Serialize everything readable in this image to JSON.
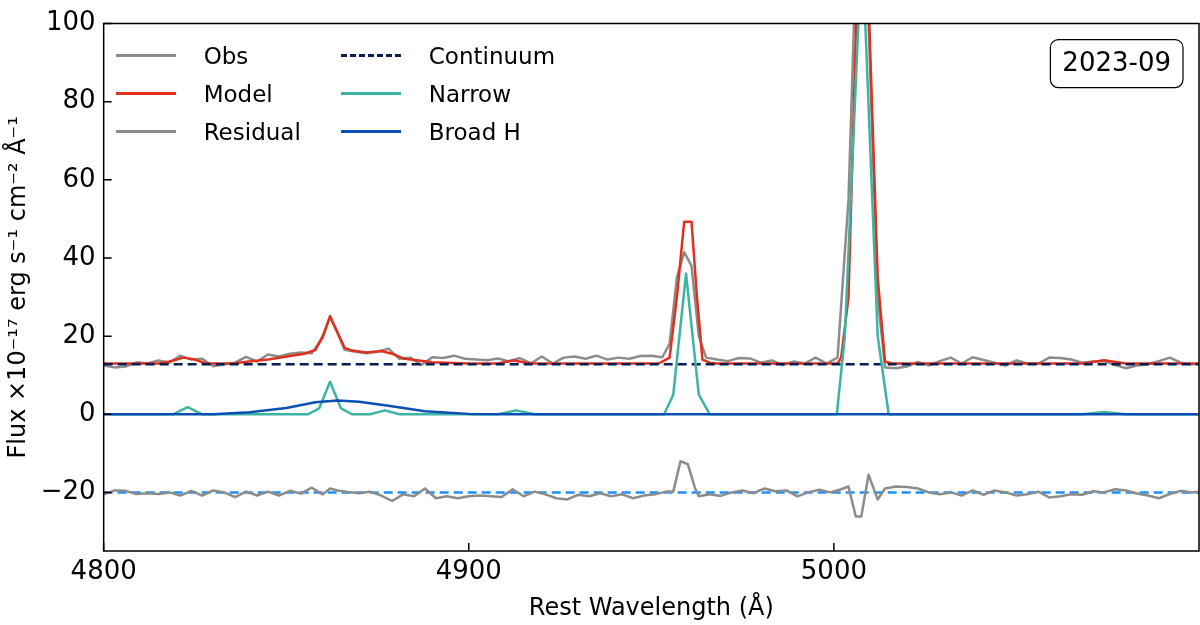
{
  "chart_data": {
    "type": "line",
    "xlabel": "Rest Wavelength (Å)",
    "ylabel": "Flux ×10⁻¹⁷ erg s⁻¹ cm⁻² Å⁻¹",
    "xlim": [
      4800,
      5100
    ],
    "xticks": [
      4800,
      4900,
      5000
    ],
    "ylim": [
      -35,
      100
    ],
    "yticks": [
      -20,
      0,
      20,
      40,
      60,
      80,
      100
    ],
    "grid": false,
    "legend": "top left",
    "marker": "none",
    "annotations": [
      "2023-09"
    ],
    "ref_lines": [
      {
        "axis": "y",
        "value": -20,
        "color": "#1f8fff",
        "line_style": "dashed"
      }
    ],
    "series": [
      {
        "name": "Obs",
        "color": "#8c8c8c",
        "line_style": "solid",
        "x": [
          4800,
          4803,
          4806,
          4809,
          4812,
          4815,
          4818,
          4821,
          4824,
          4827,
          4830,
          4833,
          4836,
          4839,
          4842,
          4845,
          4848,
          4851,
          4854,
          4857,
          4860,
          4862,
          4864,
          4866,
          4869,
          4872,
          4875,
          4878,
          4881,
          4884,
          4887,
          4890,
          4893,
          4896,
          4899,
          4902,
          4905,
          4908,
          4911,
          4914,
          4917,
          4920,
          4923,
          4926,
          4929,
          4932,
          4935,
          4938,
          4941,
          4944,
          4947,
          4950,
          4953,
          4955,
          4957,
          4959,
          4961,
          4963,
          4965,
          4968,
          4971,
          4974,
          4977,
          4980,
          4983,
          4986,
          4989,
          4992,
          4995,
          4998,
          5001,
          5004,
          5005.5,
          5007,
          5009.5,
          5012,
          5014,
          5017,
          5020,
          5023,
          5026,
          5029,
          5032,
          5035,
          5038,
          5041,
          5044,
          5047,
          5050,
          5053,
          5056,
          5059,
          5062,
          5065,
          5068,
          5071,
          5074,
          5077,
          5080,
          5083,
          5086,
          5089,
          5092,
          5095,
          5098,
          5100
        ],
        "values": [
          12.5,
          12.0,
          12.2,
          13.3,
          13.0,
          13.8,
          13.2,
          15.0,
          14.0,
          14.2,
          12.3,
          12.8,
          13.2,
          14.7,
          13.5,
          15.3,
          14.8,
          15.5,
          15.8,
          15.6,
          19.5,
          25.2,
          21.0,
          16.5,
          16.0,
          15.6,
          16.0,
          16.8,
          14.2,
          14.5,
          12.6,
          14.6,
          14.4,
          15.0,
          14.2,
          14.0,
          13.8,
          14.3,
          13.5,
          14.4,
          13.0,
          14.8,
          13.0,
          14.5,
          14.8,
          14.2,
          15.0,
          14.0,
          14.5,
          14.2,
          14.9,
          15.0,
          14.6,
          18,
          35,
          41.5,
          38,
          20,
          14.5,
          14.0,
          13.6,
          14.4,
          14.3,
          13.2,
          13.8,
          12.6,
          13.5,
          13.0,
          14.5,
          13.0,
          14.5,
          55,
          100,
          null,
          100,
          30,
          12.0,
          11.8,
          12.2,
          13.4,
          12.5,
          13.6,
          14.5,
          13.0,
          14.6,
          13.9,
          13.2,
          12.5,
          13.8,
          13.0,
          13.0,
          14.5,
          14.4,
          14.0,
          13.2,
          13.5,
          13.6,
          12.6,
          11.8,
          12.5,
          12.8,
          13.6,
          14.5,
          13.2,
          12.8,
          12.9
        ]
      },
      {
        "name": "Model",
        "color": "#e0301e",
        "line_style": "solid",
        "x": [
          4800,
          4815,
          4818,
          4822,
          4825,
          4828,
          4835,
          4845,
          4855,
          4858,
          4860,
          4862,
          4864,
          4866,
          4868,
          4872,
          4876,
          4879,
          4882,
          4890,
          4900,
          4908,
          4912,
          4915,
          4918,
          4952,
          4954,
          4955,
          4957,
          4959,
          4961,
          4962.5,
          4964,
          4966,
          4968,
          5001,
          5002,
          5004,
          5006.1,
          5007.5,
          5009.7,
          5012,
          5014,
          5016,
          5068,
          5074,
          5080,
          5100
        ],
        "values": [
          13,
          13,
          13.5,
          14.5,
          14,
          13,
          13,
          14,
          15.5,
          16.5,
          20,
          25,
          21,
          17,
          16.3,
          15.8,
          16.2,
          15.5,
          14.3,
          13.3,
          13,
          13,
          13.8,
          13.3,
          13,
          13,
          14,
          14.5,
          30,
          49.3,
          49.3,
          30,
          14,
          13.2,
          13,
          13,
          14.5,
          30,
          100,
          null,
          100,
          35,
          13.5,
          13,
          13,
          13.8,
          13,
          13
        ]
      },
      {
        "name": "Residual",
        "color": "#8c8c8c",
        "line_style": "solid",
        "x": [
          4800,
          4803,
          4806,
          4809,
          4812,
          4815,
          4818,
          4821,
          4824,
          4827,
          4830,
          4833,
          4836,
          4839,
          4842,
          4845,
          4848,
          4851,
          4854,
          4857,
          4860,
          4862,
          4864,
          4867,
          4870,
          4873,
          4876,
          4879,
          4882,
          4885,
          4888,
          4891,
          4894,
          4897,
          4900,
          4903,
          4906,
          4909,
          4912,
          4915,
          4918,
          4921,
          4924,
          4927,
          4930,
          4933,
          4936,
          4939,
          4942,
          4945,
          4948,
          4951,
          4954,
          4956,
          4958,
          4960,
          4962,
          4963,
          4966,
          4969,
          4972,
          4975,
          4978,
          4981,
          4984,
          4987,
          4990,
          4993,
          4996,
          4999,
          5002,
          5004,
          5006,
          5007.5,
          5009.5,
          5012,
          5014,
          5017,
          5020,
          5023,
          5026,
          5029,
          5032,
          5035,
          5038,
          5041,
          5044,
          5047,
          5050,
          5053,
          5056,
          5059,
          5062,
          5065,
          5068,
          5071,
          5074,
          5077,
          5080,
          5083,
          5086,
          5089,
          5092,
          5095,
          5098,
          5100
        ],
        "values": [
          -20.5,
          -19.5,
          -19.6,
          -20.4,
          -20.2,
          -20.4,
          -20.0,
          -20.8,
          -19.6,
          -20.8,
          -19.5,
          -20.0,
          -21.2,
          -19.8,
          -20.8,
          -19.8,
          -20.8,
          -19.6,
          -20.3,
          -18.8,
          -20.5,
          -19.0,
          -19.5,
          -19.9,
          -20.2,
          -19.8,
          -20.8,
          -22.2,
          -20.5,
          -21.0,
          -19.0,
          -21.5,
          -21.0,
          -21.5,
          -21.0,
          -20.8,
          -21.0,
          -21.2,
          -19.2,
          -21.0,
          -19.8,
          -20.5,
          -21.5,
          -21.8,
          -20.6,
          -21.0,
          -20.2,
          -21.0,
          -20.5,
          -21.5,
          -20.8,
          -20.5,
          -19.8,
          -19.8,
          -12.0,
          -12.8,
          -19.0,
          -21.0,
          -20.5,
          -20.9,
          -20.0,
          -19.5,
          -20.2,
          -19.0,
          -19.7,
          -19.5,
          -21.0,
          -20.0,
          -19.3,
          -20.0,
          -19.2,
          -18.5,
          -26.2,
          -26.2,
          -15.5,
          -21.8,
          -19.0,
          -18.5,
          -18.6,
          -19.0,
          -20.0,
          -20.5,
          -20.0,
          -20.8,
          -19.5,
          -20.6,
          -19.5,
          -20.0,
          -20.8,
          -20.5,
          -19.8,
          -21.3,
          -21.0,
          -20.5,
          -20.6,
          -19.7,
          -20.0,
          -19.2,
          -19.5,
          -20.3,
          -20.8,
          -21.5,
          -20.4,
          -19.6,
          -20.0,
          -19.8
        ]
      },
      {
        "name": "Continuum",
        "color": "#0b1d51",
        "line_style": "dashed",
        "x": [
          4800,
          5100
        ],
        "values": [
          12.8,
          12.8
        ]
      },
      {
        "name": "Narrow",
        "color": "#3cb4a4",
        "line_style": "solid",
        "x": [
          4800,
          4819,
          4823,
          4827,
          4856,
          4859,
          4862,
          4865,
          4868,
          4873,
          4877,
          4881,
          4908,
          4913,
          4918,
          4953.5,
          4956,
          4959.5,
          4963,
          4966,
          5000.8,
          5003,
          5006.7,
          5007.7,
          5008.6,
          5012,
          5015,
          5068,
          5074,
          5080,
          5100
        ],
        "values": [
          0,
          0,
          1.8,
          0,
          0,
          1.5,
          8.3,
          1.5,
          0,
          0,
          1.0,
          0,
          0,
          1.0,
          0,
          0,
          5,
          36,
          5,
          0,
          0,
          20,
          100,
          null,
          100,
          20,
          0,
          0,
          0.6,
          0,
          0
        ]
      },
      {
        "name": "Broad H",
        "color": "#0a50b4",
        "line_style": "solid",
        "x": [
          4800,
          4830,
          4840,
          4850,
          4858,
          4864,
          4870,
          4878,
          4888,
          4900,
          4910,
          5100
        ],
        "values": [
          0,
          0,
          0.5,
          1.6,
          3.1,
          3.5,
          3.2,
          2.2,
          0.8,
          0.1,
          0,
          0
        ]
      }
    ]
  }
}
